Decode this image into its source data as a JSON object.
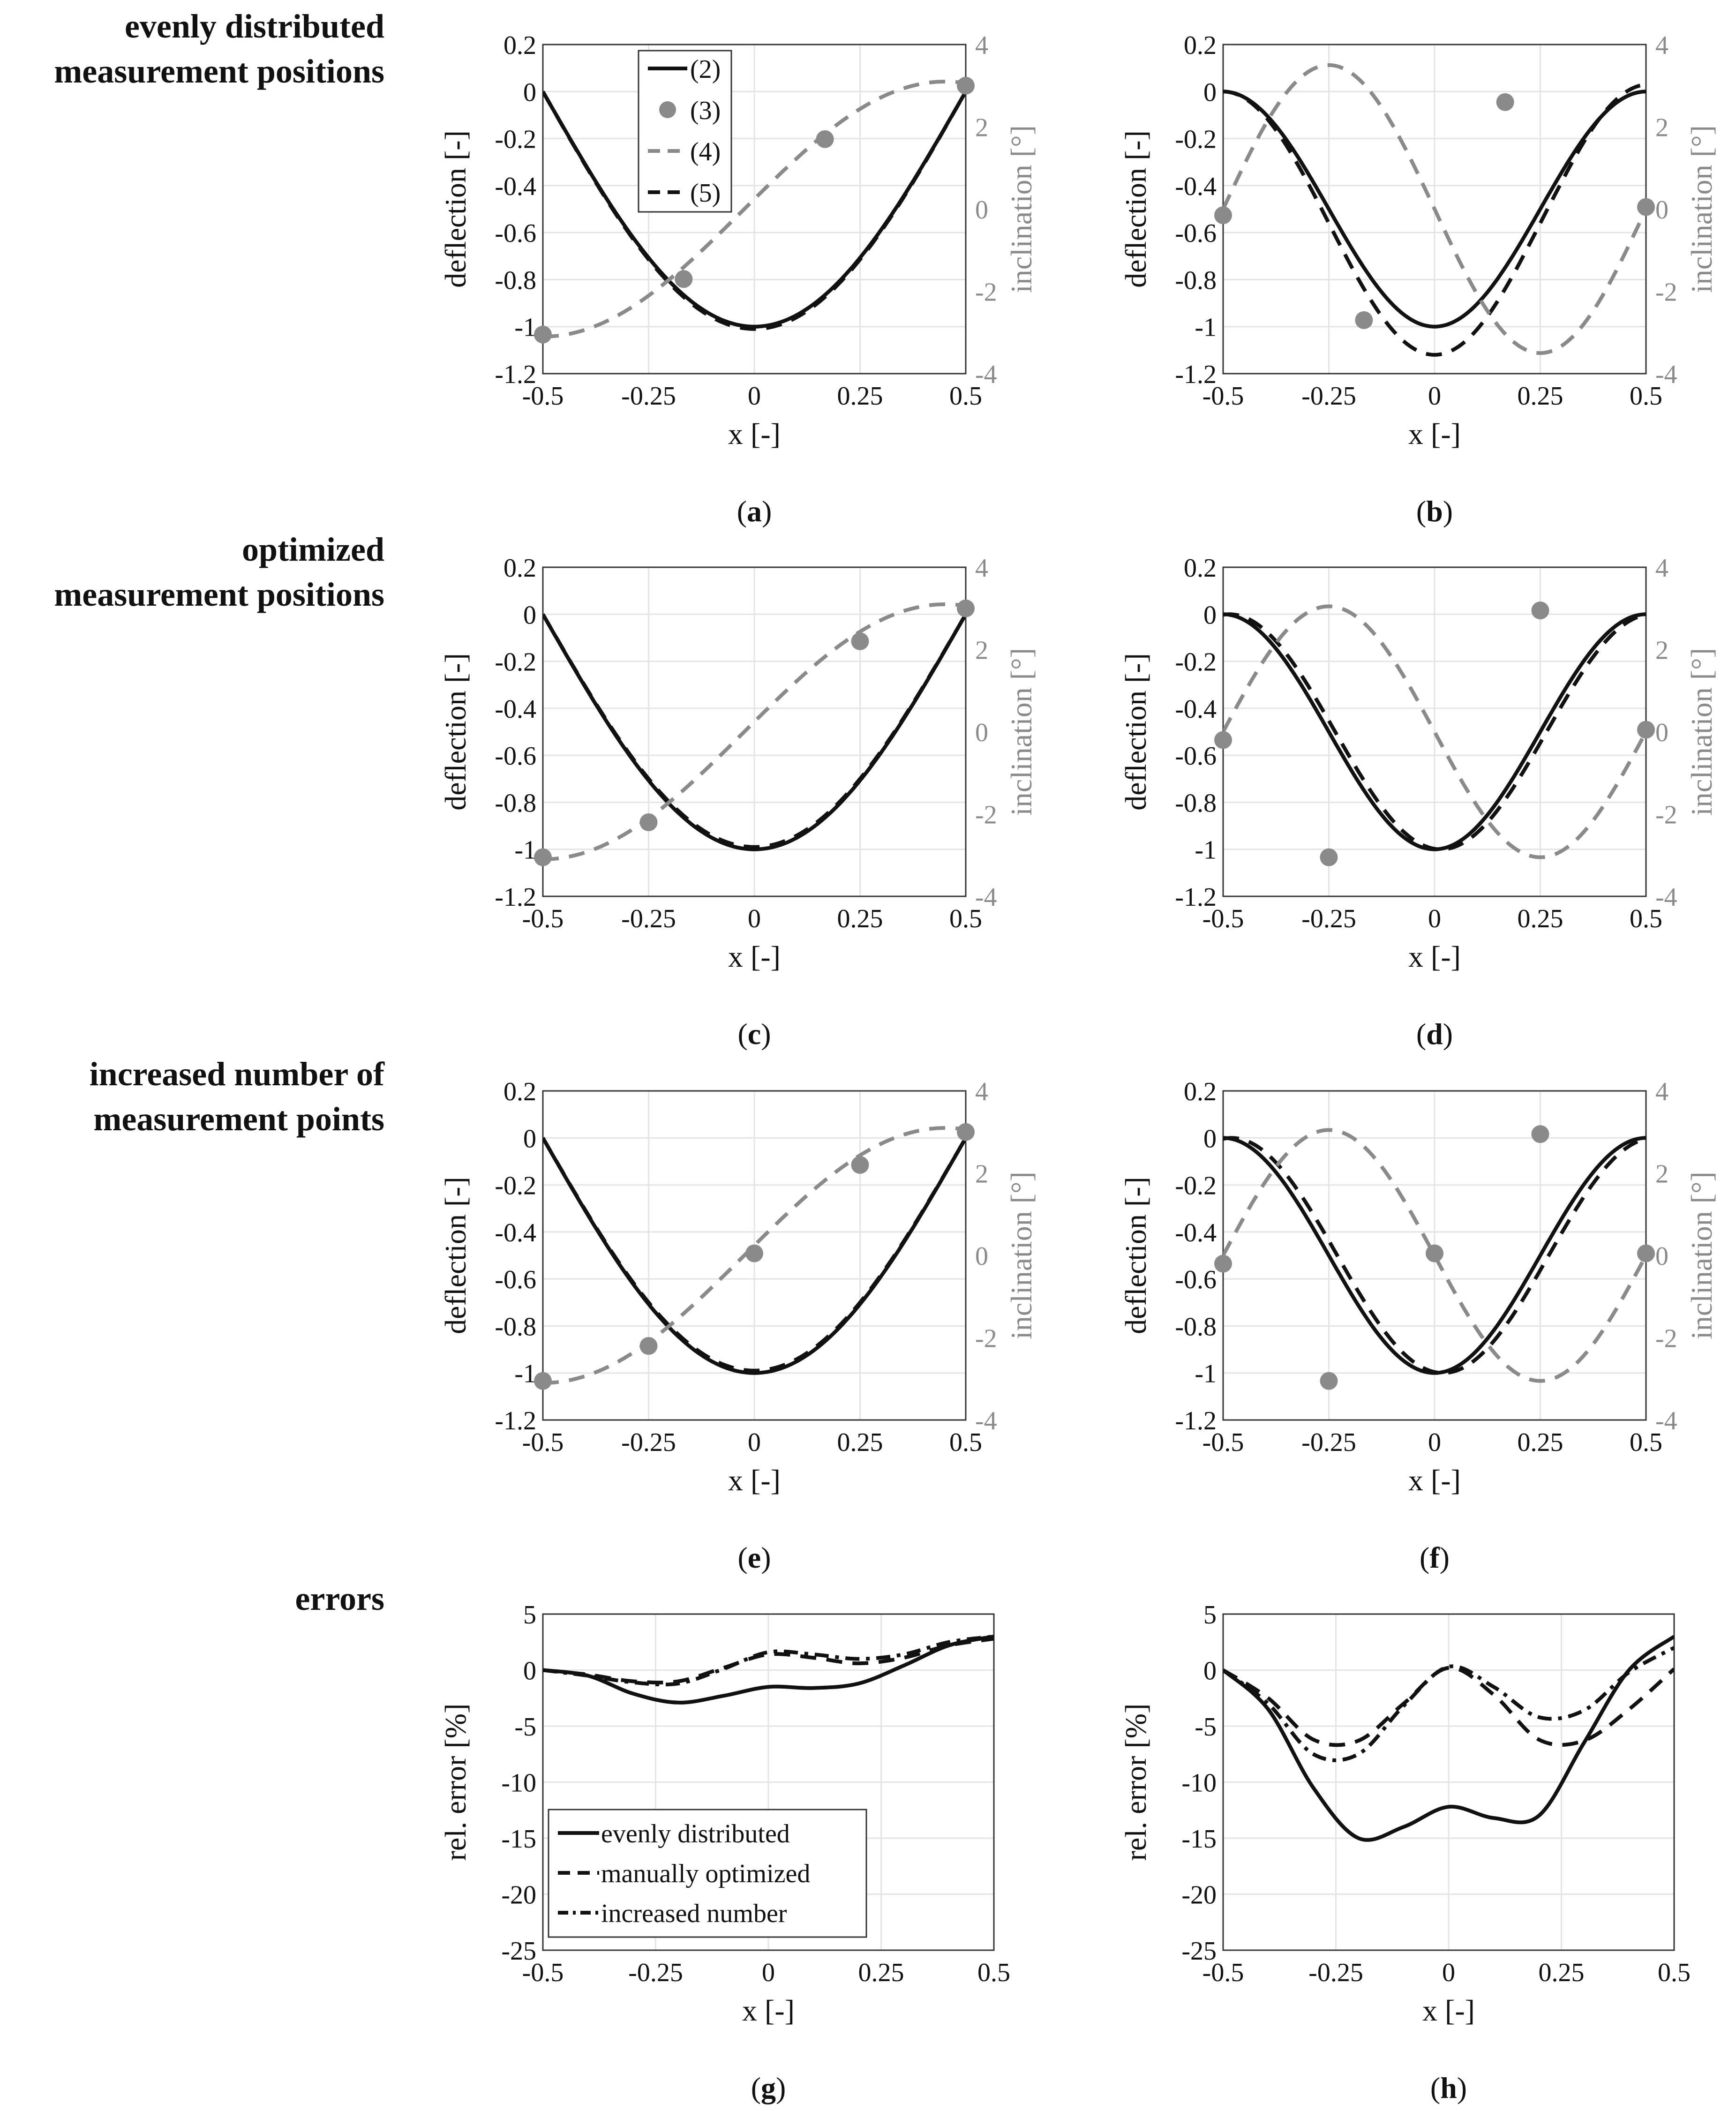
{
  "row_labels": [
    [
      "evenly distributed",
      "measurement positions"
    ],
    [
      "optimized",
      "measurement positions"
    ],
    [
      "increased number of",
      "measurement points"
    ],
    [
      "errors"
    ]
  ],
  "colors": {
    "primary": "#111111",
    "secondary": "#8a8a8a",
    "grid": "#e4e4e4",
    "axis": "#333333"
  },
  "chart_data": [
    {
      "id": "a",
      "caption": "a",
      "type": "line",
      "xlabel": "x [-]",
      "ylabel": "deflection [-]",
      "y2label": "inclination [°]",
      "xlim": [
        -0.5,
        0.5
      ],
      "ylim": [
        -1.2,
        0.2
      ],
      "y2lim": [
        -4,
        4
      ],
      "xticks": [
        -0.5,
        -0.25,
        0,
        0.25,
        0.5
      ],
      "xtick_labels": [
        "-0.5",
        "-0.25",
        "0",
        "0.25",
        "0.5"
      ],
      "yticks": [
        -1.2,
        -1,
        -0.8,
        -0.6,
        -0.4,
        -0.2,
        0,
        0.2
      ],
      "ytick_labels": [
        "-1.2",
        "-1",
        "-0.8",
        "-0.6",
        "-0.4",
        "-0.2",
        "0",
        "0.2"
      ],
      "y2ticks": [
        -4,
        -2,
        0,
        2,
        4
      ],
      "y2tick_labels": [
        "-4",
        "-2",
        "0",
        "2",
        "4"
      ],
      "legend": [
        "(2)",
        "(3)",
        "(4)",
        "(5)"
      ],
      "series": [
        {
          "name": "(2)",
          "style": "solid",
          "axis": "left",
          "shape": "half_cosine",
          "amplitude": 1.0
        },
        {
          "name": "(5)",
          "style": "dashed",
          "axis": "left",
          "shape": "half_cosine",
          "amplitude": 1.01
        },
        {
          "name": "(4)",
          "style": "dashed",
          "axis": "right",
          "shape": "shifted_sine",
          "amplitude": 3.1,
          "shift": 0.5
        },
        {
          "name": "(3)",
          "style": "markers",
          "axis": "right",
          "x": [
            -0.5,
            -0.167,
            0.167,
            0.5
          ],
          "y": [
            -3.05,
            -1.7,
            1.7,
            3.0
          ]
        }
      ]
    },
    {
      "id": "b",
      "caption": "b",
      "type": "line",
      "xlabel": "x [-]",
      "ylabel": "deflection [-]",
      "y2label": "inclination [°]",
      "xlim": [
        -0.5,
        0.5
      ],
      "ylim": [
        -1.2,
        0.2
      ],
      "y2lim": [
        -4,
        4
      ],
      "xticks": [
        -0.5,
        -0.25,
        0,
        0.25,
        0.5
      ],
      "xtick_labels": [
        "-0.5",
        "-0.25",
        "0",
        "0.25",
        "0.5"
      ],
      "yticks": [
        -1.2,
        -1,
        -0.8,
        -0.6,
        -0.4,
        -0.2,
        0,
        0.2
      ],
      "ytick_labels": [
        "-1.2",
        "-1",
        "-0.8",
        "-0.6",
        "-0.4",
        "-0.2",
        "0",
        "0.2"
      ],
      "y2ticks": [
        -4,
        -2,
        0,
        2,
        4
      ],
      "y2tick_labels": [
        "-4",
        "-2",
        "0",
        "2",
        "4"
      ],
      "series": [
        {
          "name": "(2)",
          "style": "solid",
          "axis": "left",
          "shape": "full_cosine",
          "amplitude": 1.0
        },
        {
          "name": "(5)",
          "style": "dashed",
          "axis": "left",
          "shape": "full_cosine",
          "amplitude": 1.12,
          "tail": 0.03
        },
        {
          "name": "(4)",
          "style": "dashed",
          "axis": "right",
          "shape": "full_sine",
          "amplitude": 3.5
        },
        {
          "name": "(3)",
          "style": "markers",
          "axis": "right",
          "x": [
            -0.5,
            -0.167,
            0.167,
            0.5
          ],
          "y": [
            -0.15,
            -2.7,
            2.6,
            0.05
          ]
        }
      ]
    },
    {
      "id": "c",
      "caption": "c",
      "type": "line",
      "xlabel": "x [-]",
      "ylabel": "deflection [-]",
      "y2label": "inclination [°]",
      "xlim": [
        -0.5,
        0.5
      ],
      "ylim": [
        -1.2,
        0.2
      ],
      "y2lim": [
        -4,
        4
      ],
      "xticks": [
        -0.5,
        -0.25,
        0,
        0.25,
        0.5
      ],
      "xtick_labels": [
        "-0.5",
        "-0.25",
        "0",
        "0.25",
        "0.5"
      ],
      "yticks": [
        -1.2,
        -1,
        -0.8,
        -0.6,
        -0.4,
        -0.2,
        0,
        0.2
      ],
      "ytick_labels": [
        "-1.2",
        "-1",
        "-0.8",
        "-0.6",
        "-0.4",
        "-0.2",
        "0",
        "0.2"
      ],
      "y2ticks": [
        -4,
        -2,
        0,
        2,
        4
      ],
      "y2tick_labels": [
        "-4",
        "-2",
        "0",
        "2",
        "4"
      ],
      "series": [
        {
          "name": "(2)",
          "style": "solid",
          "axis": "left",
          "shape": "half_cosine",
          "amplitude": 1.0
        },
        {
          "name": "(5)",
          "style": "dashed",
          "axis": "left",
          "shape": "half_cosine",
          "amplitude": 0.99
        },
        {
          "name": "(4)",
          "style": "dashed",
          "axis": "right",
          "shape": "shifted_sine",
          "amplitude": 3.1,
          "shift": 0.5
        },
        {
          "name": "(3)",
          "style": "markers",
          "axis": "right",
          "x": [
            -0.5,
            -0.25,
            0.25,
            0.5
          ],
          "y": [
            -3.05,
            -2.2,
            2.2,
            3.0
          ]
        }
      ]
    },
    {
      "id": "d",
      "caption": "d",
      "type": "line",
      "xlabel": "x [-]",
      "ylabel": "deflection [-]",
      "y2label": "inclination [°]",
      "xlim": [
        -0.5,
        0.5
      ],
      "ylim": [
        -1.2,
        0.2
      ],
      "y2lim": [
        -4,
        4
      ],
      "xticks": [
        -0.5,
        -0.25,
        0,
        0.25,
        0.5
      ],
      "xtick_labels": [
        "-0.5",
        "-0.25",
        "0",
        "0.25",
        "0.5"
      ],
      "yticks": [
        -1.2,
        -1,
        -0.8,
        -0.6,
        -0.4,
        -0.2,
        0,
        0.2
      ],
      "ytick_labels": [
        "-1.2",
        "-1",
        "-0.8",
        "-0.6",
        "-0.4",
        "-0.2",
        "0",
        "0.2"
      ],
      "y2ticks": [
        -4,
        -2,
        0,
        2,
        4
      ],
      "y2tick_labels": [
        "-4",
        "-2",
        "0",
        "2",
        "4"
      ],
      "series": [
        {
          "name": "(2)",
          "style": "solid",
          "axis": "left",
          "shape": "full_cosine",
          "amplitude": 1.0
        },
        {
          "name": "(5)",
          "style": "dashed",
          "axis": "left",
          "shape": "full_cosine_shifted",
          "amplitude": 1.0,
          "shift": 0.015
        },
        {
          "name": "(4)",
          "style": "dashed",
          "axis": "right",
          "shape": "full_sine",
          "amplitude": 3.05
        },
        {
          "name": "(3)",
          "style": "markers",
          "axis": "right",
          "x": [
            -0.5,
            -0.25,
            0.25,
            0.5
          ],
          "y": [
            -0.2,
            -3.05,
            2.95,
            0.05
          ]
        }
      ]
    },
    {
      "id": "e",
      "caption": "e",
      "type": "line",
      "xlabel": "x [-]",
      "ylabel": "deflection [-]",
      "y2label": "inclination [°]",
      "xlim": [
        -0.5,
        0.5
      ],
      "ylim": [
        -1.2,
        0.2
      ],
      "y2lim": [
        -4,
        4
      ],
      "xticks": [
        -0.5,
        -0.25,
        0,
        0.25,
        0.5
      ],
      "xtick_labels": [
        "-0.5",
        "-0.25",
        "0",
        "0.25",
        "0.5"
      ],
      "yticks": [
        -1.2,
        -1,
        -0.8,
        -0.6,
        -0.4,
        -0.2,
        0,
        0.2
      ],
      "ytick_labels": [
        "-1.2",
        "-1",
        "-0.8",
        "-0.6",
        "-0.4",
        "-0.2",
        "0",
        "0.2"
      ],
      "y2ticks": [
        -4,
        -2,
        0,
        2,
        4
      ],
      "y2tick_labels": [
        "-4",
        "-2",
        "0",
        "2",
        "4"
      ],
      "series": [
        {
          "name": "(2)",
          "style": "solid",
          "axis": "left",
          "shape": "half_cosine",
          "amplitude": 1.0
        },
        {
          "name": "(5)",
          "style": "dashed",
          "axis": "left",
          "shape": "half_cosine",
          "amplitude": 0.99
        },
        {
          "name": "(4)",
          "style": "dashed",
          "axis": "right",
          "shape": "shifted_sine",
          "amplitude": 3.1,
          "shift": 0.5
        },
        {
          "name": "(3)",
          "style": "markers",
          "axis": "right",
          "x": [
            -0.5,
            -0.25,
            0,
            0.25,
            0.5
          ],
          "y": [
            -3.05,
            -2.2,
            0.05,
            2.2,
            3.0
          ]
        }
      ]
    },
    {
      "id": "f",
      "caption": "f",
      "type": "line",
      "xlabel": "x [-]",
      "ylabel": "deflection [-]",
      "y2label": "inclination [°]",
      "xlim": [
        -0.5,
        0.5
      ],
      "ylim": [
        -1.2,
        0.2
      ],
      "y2lim": [
        -4,
        4
      ],
      "xticks": [
        -0.5,
        -0.25,
        0,
        0.25,
        0.5
      ],
      "xtick_labels": [
        "-0.5",
        "-0.25",
        "0",
        "0.25",
        "0.5"
      ],
      "yticks": [
        -1.2,
        -1,
        -0.8,
        -0.6,
        -0.4,
        -0.2,
        0,
        0.2
      ],
      "ytick_labels": [
        "-1.2",
        "-1",
        "-0.8",
        "-0.6",
        "-0.4",
        "-0.2",
        "0",
        "0.2"
      ],
      "y2ticks": [
        -4,
        -2,
        0,
        2,
        4
      ],
      "y2tick_labels": [
        "-4",
        "-2",
        "0",
        "2",
        "4"
      ],
      "series": [
        {
          "name": "(2)",
          "style": "solid",
          "axis": "left",
          "shape": "full_cosine",
          "amplitude": 1.0
        },
        {
          "name": "(5)",
          "style": "dashed",
          "axis": "left",
          "shape": "full_cosine_shifted",
          "amplitude": 1.0,
          "shift": 0.02
        },
        {
          "name": "(4)",
          "style": "dashed",
          "axis": "right",
          "shape": "full_sine",
          "amplitude": 3.05
        },
        {
          "name": "(3)",
          "style": "markers",
          "axis": "right",
          "x": [
            -0.5,
            -0.25,
            0,
            0.25,
            0.5
          ],
          "y": [
            -0.2,
            -3.05,
            0.05,
            2.95,
            0.05
          ]
        }
      ]
    },
    {
      "id": "g",
      "caption": "g",
      "type": "line",
      "xlabel": "x [-]",
      "ylabel": "rel. error [%]",
      "xlim": [
        -0.5,
        0.5
      ],
      "ylim": [
        -25,
        5
      ],
      "xticks": [
        -0.5,
        -0.25,
        0,
        0.25,
        0.5
      ],
      "xtick_labels": [
        "-0.5",
        "-0.25",
        "0",
        "0.25",
        "0.5"
      ],
      "yticks": [
        -25,
        -20,
        -15,
        -10,
        -5,
        0,
        5
      ],
      "ytick_labels": [
        "-25",
        "-20",
        "-15",
        "-10",
        "-5",
        "0",
        "5"
      ],
      "legend": [
        "evenly distributed",
        "manually optimized",
        "increased number"
      ],
      "series": [
        {
          "name": "evenly distributed",
          "style": "solid",
          "x": [
            -0.5,
            -0.4,
            -0.3,
            -0.2,
            -0.1,
            0,
            0.1,
            0.2,
            0.3,
            0.4,
            0.5
          ],
          "y": [
            0,
            -0.5,
            -2.1,
            -2.9,
            -2.3,
            -1.5,
            -1.6,
            -1.2,
            0.4,
            2.2,
            3.0
          ]
        },
        {
          "name": "manually optimized",
          "style": "dashed",
          "x": [
            -0.5,
            -0.4,
            -0.3,
            -0.2,
            -0.1,
            0,
            0.1,
            0.2,
            0.3,
            0.4,
            0.5
          ],
          "y": [
            0,
            -0.4,
            -1.0,
            -1.0,
            0.2,
            1.4,
            1.1,
            0.6,
            1.1,
            2.2,
            2.8
          ]
        },
        {
          "name": "increased number",
          "style": "dashdot",
          "x": [
            -0.5,
            -0.4,
            -0.3,
            -0.2,
            -0.1,
            0,
            0.1,
            0.2,
            0.3,
            0.4,
            0.5
          ],
          "y": [
            0,
            -0.5,
            -1.1,
            -1.2,
            0.1,
            1.6,
            1.4,
            1.0,
            1.4,
            2.5,
            3.0
          ]
        }
      ]
    },
    {
      "id": "h",
      "caption": "h",
      "type": "line",
      "xlabel": "x [-]",
      "ylabel": "rel. error [%]",
      "xlim": [
        -0.5,
        0.5
      ],
      "ylim": [
        -25,
        5
      ],
      "xticks": [
        -0.5,
        -0.25,
        0,
        0.25,
        0.5
      ],
      "xtick_labels": [
        "-0.5",
        "-0.25",
        "0",
        "0.25",
        "0.5"
      ],
      "yticks": [
        -25,
        -20,
        -15,
        -10,
        -5,
        0,
        5
      ],
      "ytick_labels": [
        "-25",
        "-20",
        "-15",
        "-10",
        "-5",
        "0",
        "5"
      ],
      "series": [
        {
          "name": "evenly distributed",
          "style": "solid",
          "x": [
            -0.5,
            -0.4,
            -0.3,
            -0.2,
            -0.1,
            0,
            0.1,
            0.2,
            0.3,
            0.4,
            0.5
          ],
          "y": [
            0,
            -3.5,
            -10.5,
            -15.0,
            -14.0,
            -12.2,
            -13.2,
            -13.0,
            -6.5,
            0.0,
            3.0
          ]
        },
        {
          "name": "manually optimized",
          "style": "dashed",
          "x": [
            -0.5,
            -0.4,
            -0.3,
            -0.2,
            -0.1,
            0,
            0.1,
            0.2,
            0.3,
            0.4,
            0.5
          ],
          "y": [
            0,
            -2.5,
            -6.2,
            -6.3,
            -3.0,
            0.2,
            -2.2,
            -6.2,
            -6.3,
            -3.5,
            0.1
          ]
        },
        {
          "name": "increased number",
          "style": "dashdot",
          "x": [
            -0.5,
            -0.4,
            -0.3,
            -0.2,
            -0.1,
            0,
            0.1,
            0.2,
            0.3,
            0.4,
            0.5
          ],
          "y": [
            0,
            -3.0,
            -7.5,
            -7.5,
            -3.2,
            0.3,
            -1.5,
            -4.2,
            -3.6,
            -0.2,
            2.0
          ]
        }
      ]
    }
  ]
}
